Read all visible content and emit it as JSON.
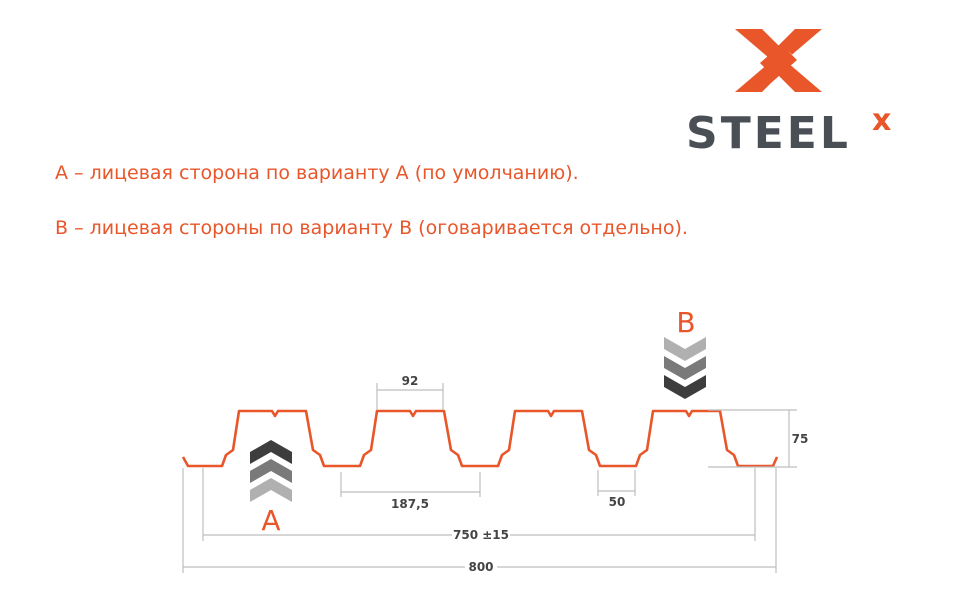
{
  "logo": {
    "text": "STEEL",
    "superscript": "x",
    "brand_color": "#e8562a",
    "text_color": "#4a4f55"
  },
  "notes": [
    "А – лицевая сторона по варианту А (по умолчанию).",
    "В – лицевая стороны по варианту В (оговаривается отдельно)."
  ],
  "diagram": {
    "profile_color": "#e8562a",
    "side_a_label": "A",
    "side_b_label": "B",
    "dimensions": {
      "top_width": "92",
      "pitch": "187,5",
      "bottom_width": "50",
      "height": "75",
      "useful_width": "750 ±15",
      "total_width": "800"
    }
  }
}
